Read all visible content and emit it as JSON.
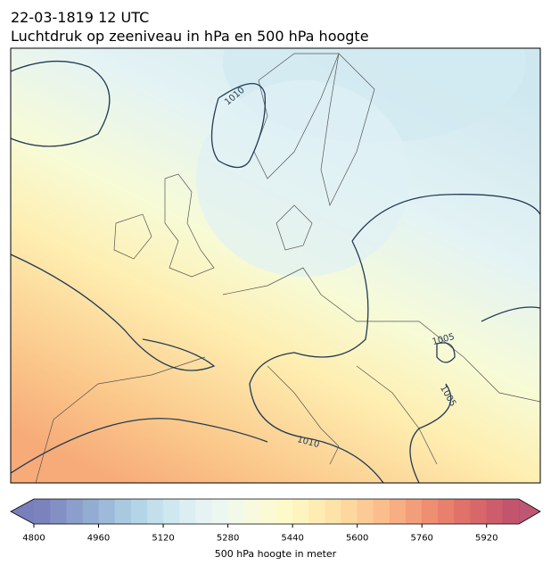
{
  "header": {
    "title": "22-03-1819 12 UTC",
    "subtitle": "Luchtdruk op zeeniveau in hPa en 500 hPa hoogte"
  },
  "map": {
    "contour_labels": [
      "1010",
      "1005",
      "1005",
      "1010"
    ]
  },
  "colorbar": {
    "label": "500 hPa hoogte in meter",
    "lim": [
      4800,
      6000
    ],
    "ticks": [
      4800,
      4960,
      5120,
      5280,
      5440,
      5600,
      5760,
      5920
    ],
    "colors": [
      "#6b76b6",
      "#7584bd",
      "#7f94c6",
      "#87a3cd",
      "#92b3d6",
      "#9fc3dd",
      "#acd0e4",
      "#bcdbea",
      "#cae5ee",
      "#d7edf2",
      "#e2f2f4",
      "#ebf6f1",
      "#f1f8e6",
      "#f6fadb",
      "#fafbcf",
      "#fdfac4",
      "#fef3b8",
      "#feeaab",
      "#fde09f",
      "#fcd394",
      "#fbc589",
      "#f9b67e",
      "#f6a574",
      "#f2946b",
      "#ed8363",
      "#e6725d",
      "#dd6359",
      "#d35659",
      "#c94b5b",
      "#bd415e"
    ],
    "under_color": "#6068ae",
    "over_color": "#b23a5d"
  }
}
